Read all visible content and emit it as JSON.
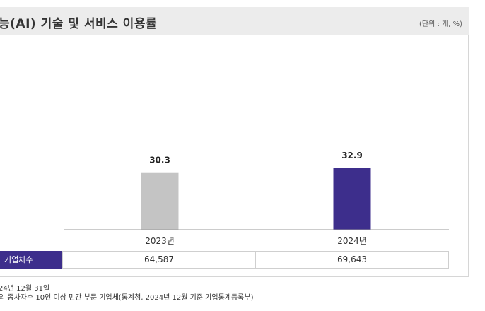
{
  "header": {
    "title": "능(AI) 기술 및 서비스 이용률",
    "unit": "(단위 : 개, %)"
  },
  "chart_data": {
    "type": "bar",
    "title": "능(AI) 기술 및 서비스 이용률",
    "categories": [
      "2023년",
      "2024년"
    ],
    "values": [
      30.3,
      32.9
    ],
    "value_labels": [
      "30.3",
      "32.9"
    ],
    "bar_colors": [
      "#c4c4c4",
      "#3d2e8c"
    ],
    "ylim": [
      0,
      100
    ],
    "xlabel": "",
    "ylabel": ""
  },
  "table": {
    "row_label": "기업체수",
    "values": [
      "64,587",
      "69,643"
    ]
  },
  "notes": [
    "24년 12월 31일",
    "의 종사자수 10인 이상 민간 부문 기업체(통계청, 2024년 12월 기준 기업통계등록부)"
  ]
}
